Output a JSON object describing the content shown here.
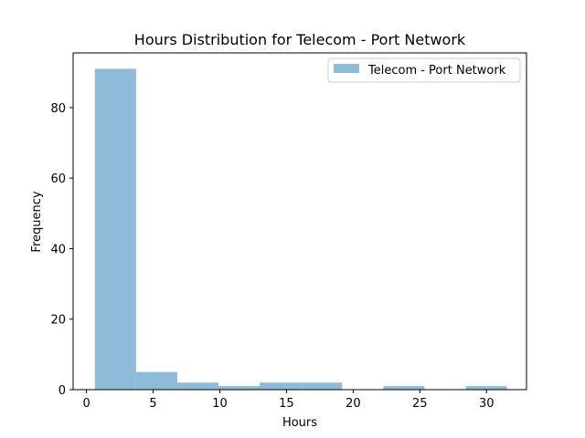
{
  "chart_data": {
    "type": "bar",
    "title": "Hours Distribution for Telecom - Port Network",
    "xlabel": "Hours",
    "ylabel": "Frequency",
    "xlim": [
      -1.0,
      33.0
    ],
    "ylim": [
      0,
      95.5
    ],
    "xticks": [
      0,
      5,
      10,
      15,
      20,
      25,
      30
    ],
    "yticks": [
      0,
      20,
      40,
      60,
      80
    ],
    "bins": [
      {
        "start": 0.63,
        "end": 3.72,
        "value": 91
      },
      {
        "start": 3.72,
        "end": 6.81,
        "value": 5
      },
      {
        "start": 6.81,
        "end": 9.9,
        "value": 2
      },
      {
        "start": 9.9,
        "end": 12.99,
        "value": 1
      },
      {
        "start": 12.99,
        "end": 16.08,
        "value": 2
      },
      {
        "start": 16.08,
        "end": 19.17,
        "value": 2
      },
      {
        "start": 19.17,
        "end": 22.26,
        "value": 0
      },
      {
        "start": 22.26,
        "end": 25.35,
        "value": 1
      },
      {
        "start": 25.35,
        "end": 28.44,
        "value": 0
      },
      {
        "start": 28.44,
        "end": 31.53,
        "value": 1
      }
    ],
    "series": [
      {
        "name": "Telecom - Port Network",
        "color": "#8fbbd9"
      }
    ],
    "legend_position": "top-right",
    "grid": false
  }
}
